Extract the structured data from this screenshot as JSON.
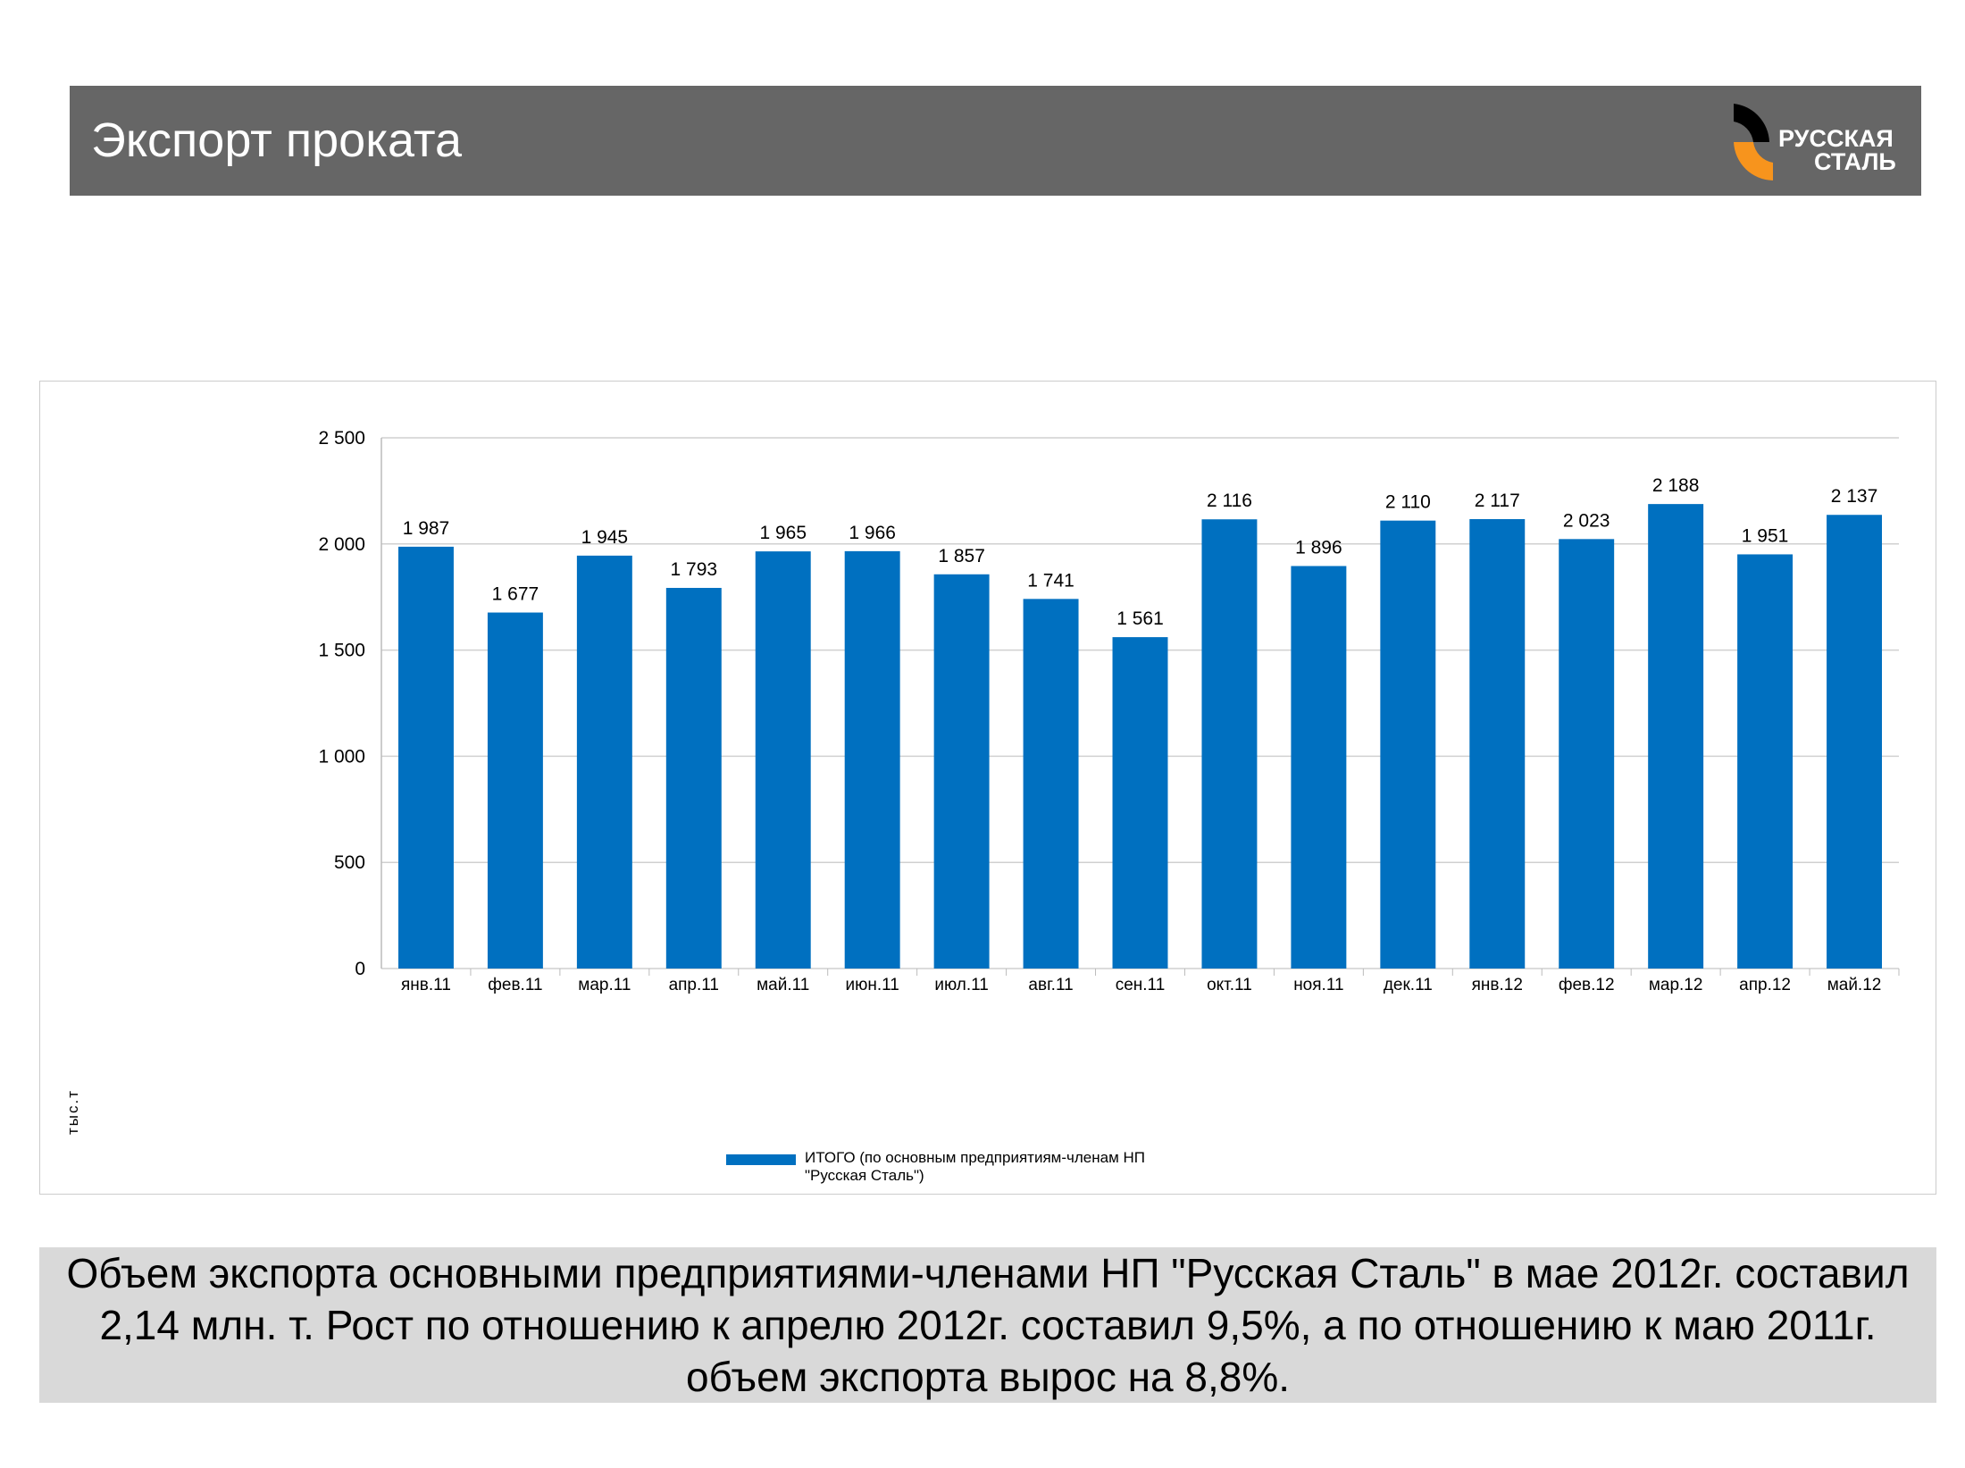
{
  "header": {
    "title": "Экспорт проката",
    "logo_text": [
      "РУССКАЯ",
      "СТАЛЬ"
    ]
  },
  "chart_data": {
    "type": "bar",
    "categories": [
      "янв.11",
      "фев.11",
      "мар.11",
      "апр.11",
      "май.11",
      "июн.11",
      "июл.11",
      "авг.11",
      "сен.11",
      "окт.11",
      "ноя.11",
      "дек.11",
      "янв.12",
      "фев.12",
      "мар.12",
      "апр.12",
      "май.12"
    ],
    "values": [
      1987,
      1677,
      1945,
      1793,
      1965,
      1966,
      1857,
      1741,
      1561,
      2116,
      1896,
      2110,
      2117,
      2023,
      2188,
      1951,
      2137
    ],
    "value_labels": [
      "1 987",
      "1 677",
      "1 945",
      "1 793",
      "1 965",
      "1 966",
      "1 857",
      "1 741",
      "1 561",
      "2 116",
      "1 896",
      "2 110",
      "2 117",
      "2 023",
      "2 188",
      "1 951",
      "2 137"
    ],
    "yticks": [
      0,
      500,
      1000,
      1500,
      2000,
      2500
    ],
    "ytick_labels": [
      "0",
      "500",
      "1 000",
      "1 500",
      "2 000",
      "2 500"
    ],
    "ylim": [
      0,
      2500
    ],
    "ylabel": "тыс.т",
    "grid": true,
    "color": "#0070c0",
    "legend": {
      "label": "ИТОГО (по основным предприятиям-членам НП \"Русская Сталь\")",
      "placement": "bottom"
    }
  },
  "summary": "Объем экспорта основными предприятиями-членами НП \"Русская Сталь\" в мае 2012г. составил 2,14 млн. т.  Рост по отношению к апрелю 2012г. составил 9,5%, а по отношению к маю 2011г.  объем экспорта вырос на 8,8%."
}
